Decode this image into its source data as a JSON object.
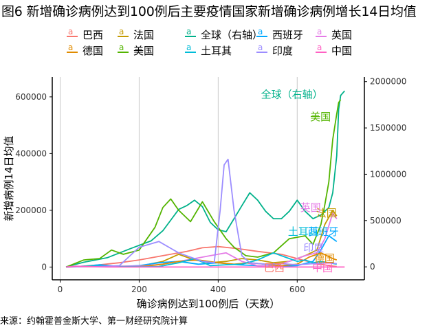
{
  "title": "图6 新增确诊病例达到100例后主要疫情国家新增确诊病例增长14日均值",
  "source": "来源：约翰霍普金斯大学、第一财经研究院计算",
  "legend": [
    {
      "name": "巴西",
      "color": "#F8766D"
    },
    {
      "name": "法国",
      "color": "#C49A00"
    },
    {
      "name": "全球（右轴）",
      "color": "#00B18A"
    },
    {
      "name": "西班牙",
      "color": "#00A9FF"
    },
    {
      "name": "英国",
      "color": "#E47BE6"
    },
    {
      "name": "德国",
      "color": "#E08B00"
    },
    {
      "name": "美国",
      "color": "#53B400"
    },
    {
      "name": "土耳其",
      "color": "#00BCD8"
    },
    {
      "name": "印度",
      "color": "#9C8DFF"
    },
    {
      "name": "中国",
      "color": "#FF61C3"
    }
  ],
  "chart_data": {
    "type": "line",
    "xlabel": "确诊病例达到100例后（天数）",
    "ylabel": "新增病例14日均值",
    "xlim": [
      -20,
      770
    ],
    "ylim_left": [
      -45000,
      670000
    ],
    "ylim_right": [
      -140000,
      2050000
    ],
    "x_ticks": [
      0,
      200,
      400,
      600
    ],
    "y_ticks_left": [
      0,
      200000,
      400000,
      600000
    ],
    "y_ticks_right": [
      0,
      500000,
      1000000,
      1500000,
      2000000
    ],
    "grid": "vertical",
    "series": [
      {
        "name": "巴西",
        "axis": "left",
        "color": "#F8766D",
        "x": [
          15,
          60,
          100,
          150,
          200,
          260,
          320,
          360,
          400,
          450,
          500,
          560,
          600,
          640,
          680,
          700
        ],
        "y": [
          0,
          3000,
          8000,
          15000,
          25000,
          40000,
          55000,
          68000,
          72000,
          65000,
          55000,
          45000,
          30000,
          15000,
          5000,
          2000
        ]
      },
      {
        "name": "法国",
        "axis": "left",
        "color": "#C49A00",
        "x": [
          15,
          100,
          200,
          260,
          300,
          340,
          380,
          420,
          460,
          500,
          540,
          580,
          620,
          650,
          670,
          690,
          700
        ],
        "y": [
          0,
          2000,
          3000,
          20000,
          45000,
          25000,
          15000,
          20000,
          30000,
          25000,
          15000,
          20000,
          40000,
          60000,
          150000,
          200000,
          180000
        ]
      },
      {
        "name": "全球（右轴）",
        "axis": "right",
        "color": "#00B18A",
        "x": [
          15,
          60,
          120,
          180,
          230,
          260,
          300,
          320,
          340,
          360,
          380,
          400,
          420,
          440,
          460,
          480,
          500,
          520,
          540,
          560,
          580,
          600,
          620,
          640,
          660,
          680,
          690,
          700,
          705,
          710,
          720
        ],
        "y": [
          0,
          50000,
          100000,
          200000,
          280000,
          390000,
          620000,
          660000,
          720000,
          650000,
          480000,
          400000,
          380000,
          520000,
          660000,
          800000,
          720000,
          600000,
          520000,
          520000,
          600000,
          720000,
          600000,
          520000,
          560000,
          640000,
          800000,
          1200000,
          1700000,
          1850000,
          1900000
        ]
      },
      {
        "name": "西班牙",
        "axis": "left",
        "color": "#00A9FF",
        "x": [
          15,
          60,
          100,
          150,
          200,
          250,
          300,
          350,
          400,
          450,
          500,
          550,
          600,
          640,
          660,
          680,
          700
        ],
        "y": [
          0,
          3000,
          8000,
          2000,
          5000,
          15000,
          20000,
          10000,
          15000,
          8000,
          5000,
          3000,
          5000,
          20000,
          60000,
          110000,
          90000
        ]
      },
      {
        "name": "英国",
        "axis": "left",
        "color": "#E47BE6",
        "x": [
          15,
          100,
          200,
          260,
          300,
          340,
          380,
          420,
          460,
          500,
          540,
          580,
          620,
          650,
          670,
          690,
          700
        ],
        "y": [
          0,
          3000,
          3000,
          10000,
          20000,
          30000,
          40000,
          50000,
          20000,
          5000,
          3000,
          20000,
          40000,
          50000,
          100000,
          190000,
          170000
        ]
      },
      {
        "name": "德国",
        "axis": "left",
        "color": "#E08B00",
        "x": [
          15,
          80,
          150,
          200,
          260,
          300,
          350,
          400,
          440,
          480,
          520,
          560,
          600,
          630,
          660,
          690,
          700
        ],
        "y": [
          0,
          4000,
          1000,
          1000,
          10000,
          20000,
          25000,
          15000,
          10000,
          15000,
          10000,
          5000,
          10000,
          35000,
          50000,
          30000,
          25000
        ]
      },
      {
        "name": "美国",
        "axis": "left",
        "color": "#53B400",
        "x": [
          15,
          60,
          100,
          130,
          160,
          200,
          240,
          260,
          280,
          300,
          330,
          360,
          390,
          420,
          440,
          470,
          500,
          540,
          580,
          620,
          640,
          660,
          670,
          680,
          690,
          700,
          705,
          710
        ],
        "y": [
          0,
          25000,
          30000,
          60000,
          45000,
          60000,
          140000,
          210000,
          240000,
          200000,
          160000,
          230000,
          160000,
          100000,
          70000,
          40000,
          35000,
          50000,
          100000,
          110000,
          80000,
          150000,
          220000,
          300000,
          450000,
          540000,
          580000,
          590000
        ]
      },
      {
        "name": "土耳其",
        "axis": "left",
        "color": "#00BCD8",
        "x": [
          15,
          60,
          100,
          150,
          200,
          250,
          300,
          340,
          380,
          420,
          460,
          500,
          540,
          580,
          600,
          620,
          640,
          660,
          680,
          700
        ],
        "y": [
          0,
          3000,
          4000,
          2000,
          1000,
          2000,
          15000,
          30000,
          5000,
          8000,
          10000,
          25000,
          50000,
          30000,
          20000,
          25000,
          15000,
          20000,
          15000,
          10000
        ]
      },
      {
        "name": "印度",
        "axis": "left",
        "color": "#9C8DFF",
        "x": [
          15,
          100,
          150,
          200,
          250,
          300,
          360,
          390,
          405,
          415,
          425,
          440,
          460,
          480,
          520,
          560,
          600,
          640,
          680,
          700
        ],
        "y": [
          0,
          2000,
          5000,
          70000,
          90000,
          50000,
          20000,
          15000,
          200000,
          360000,
          380000,
          200000,
          40000,
          15000,
          10000,
          12000,
          8000,
          12000,
          15000,
          12000
        ]
      },
      {
        "name": "中国",
        "axis": "left",
        "color": "#FF61C3",
        "x": [
          15,
          40,
          80,
          120,
          200,
          300,
          400,
          500,
          600,
          700,
          720
        ],
        "y": [
          0,
          3000,
          1000,
          100,
          100,
          100,
          100,
          100,
          100,
          100,
          100
        ]
      }
    ],
    "annotations": [
      {
        "text": "全球（右轴）",
        "series": "全球（右轴）",
        "color": "#00B18A",
        "x": 665,
        "y": 1860000,
        "axis": "right"
      },
      {
        "text": "美国",
        "series": "美国",
        "color": "#53B400",
        "x": 685,
        "y": 530000,
        "axis": "left"
      },
      {
        "text": "英国",
        "series": "英国",
        "color": "#E47BE6",
        "x": 660,
        "y": 210000,
        "axis": "left"
      },
      {
        "text": "法国",
        "series": "法国",
        "color": "#C49A00",
        "x": 700,
        "y": 190000,
        "axis": "left"
      },
      {
        "text": "土耳其",
        "series": "土耳其",
        "color": "#00BCD8",
        "x": 655,
        "y": 125000,
        "axis": "left"
      },
      {
        "text": "西班牙",
        "series": "西班牙",
        "color": "#00A9FF",
        "x": 705,
        "y": 125000,
        "axis": "left"
      },
      {
        "text": "印度",
        "series": "印度",
        "color": "#9C8DFF",
        "x": 668,
        "y": 68000,
        "axis": "left"
      },
      {
        "text": "德国",
        "series": "德国",
        "color": "#E08B00",
        "x": 695,
        "y": 30000,
        "axis": "left"
      },
      {
        "text": "巴西",
        "series": "巴西",
        "color": "#F8766D",
        "x": 568,
        "y": -2000,
        "axis": "left"
      },
      {
        "text": "中国",
        "series": "中国",
        "color": "#FF61C3",
        "x": 690,
        "y": -2000,
        "axis": "left"
      }
    ]
  }
}
